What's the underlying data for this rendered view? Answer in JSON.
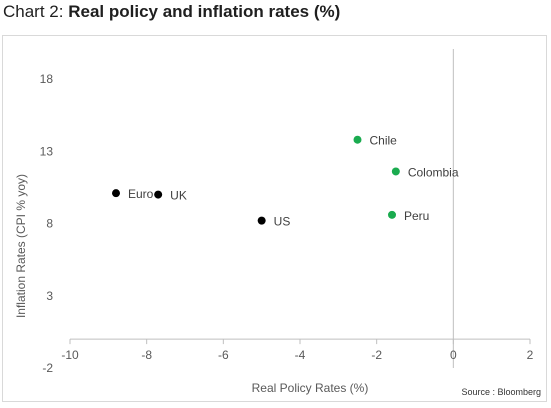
{
  "title": {
    "prefix": "Chart 2:",
    "main": "Real policy and inflation rates (%)"
  },
  "source": "Source : Bloomberg",
  "chart_data": {
    "type": "scatter",
    "xlabel": "Real Policy Rates (%)",
    "ylabel": "Inflation Rates (CPI % yoy)",
    "xlim": [
      -10,
      2
    ],
    "ylim": [
      -2,
      18
    ],
    "xticks": [
      -10,
      -8,
      -6,
      -4,
      -2,
      0,
      2
    ],
    "yticks": [
      -2,
      3,
      8,
      13,
      18
    ],
    "grid": false,
    "colors": {
      "developed": "#000000",
      "latam": "#1aab4f",
      "axis": "#bfbfbf"
    },
    "points": [
      {
        "label": "Euro",
        "x": -8.8,
        "y": 10.1,
        "group": "developed"
      },
      {
        "label": "UK",
        "x": -7.7,
        "y": 10.0,
        "group": "developed"
      },
      {
        "label": "US",
        "x": -5.0,
        "y": 8.2,
        "group": "developed"
      },
      {
        "label": "Chile",
        "x": -2.5,
        "y": 13.8,
        "group": "latam"
      },
      {
        "label": "Colombia",
        "x": -1.5,
        "y": 11.6,
        "group": "latam"
      },
      {
        "label": "Peru",
        "x": -1.6,
        "y": 8.6,
        "group": "latam"
      }
    ]
  }
}
